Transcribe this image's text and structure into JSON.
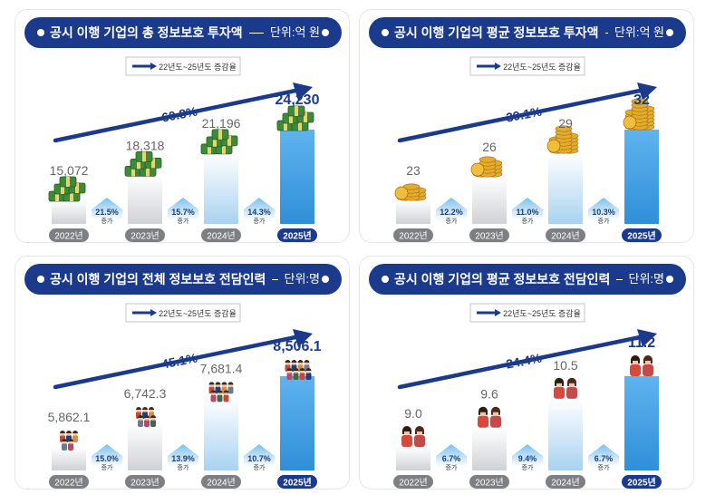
{
  "legend_label": "22년도~25년도 증감율",
  "chart_data": [
    {
      "type": "bar",
      "title": "공시 이행 기업의 총 정보보호 투자액",
      "unit": "단위:억 원",
      "categories": [
        "2022년",
        "2023년",
        "2024년",
        "2025년"
      ],
      "values": [
        15072,
        18318,
        21196,
        24230
      ],
      "value_labels": [
        "15,072",
        "18,318",
        "21,196",
        "24,230"
      ],
      "changes": [
        {
          "pct": "21.5%",
          "label": "증가"
        },
        {
          "pct": "15.7%",
          "label": "증가"
        },
        {
          "pct": "14.3%",
          "label": "증가"
        }
      ],
      "total_change": "60.8%",
      "icon": "money-stack-icon"
    },
    {
      "type": "bar",
      "title": "공시 이행 기업의 평균 정보보호 투자액",
      "unit": "단위:억 원",
      "categories": [
        "2022년",
        "2023년",
        "2024년",
        "2025년"
      ],
      "values": [
        23,
        26,
        29,
        32
      ],
      "value_labels": [
        "23",
        "26",
        "29",
        "32"
      ],
      "changes": [
        {
          "pct": "12.2%",
          "label": "증가"
        },
        {
          "pct": "11.0%",
          "label": "증가"
        },
        {
          "pct": "10.3%",
          "label": "증가"
        }
      ],
      "total_change": "39.1%",
      "icon": "coin-stack-icon"
    },
    {
      "type": "bar",
      "title": "공시 이행 기업의 전체 정보보호 전담인력",
      "unit": "단위:명",
      "categories": [
        "2022년",
        "2023년",
        "2024년",
        "2025년"
      ],
      "values": [
        5862.1,
        6742.3,
        7681.4,
        8506.1
      ],
      "value_labels": [
        "5,862.1",
        "6,742.3",
        "7,681.4",
        "8,506.1"
      ],
      "changes": [
        {
          "pct": "15.0%",
          "label": "증가"
        },
        {
          "pct": "13.9%",
          "label": "증가"
        },
        {
          "pct": "10.7%",
          "label": "증가"
        }
      ],
      "total_change": "45.1%",
      "icon": "people-group-icon"
    },
    {
      "type": "bar",
      "title": "공시 이행 기업의 평균 정보보호 전담인력",
      "unit": "단위:명",
      "categories": [
        "2022년",
        "2023년",
        "2024년",
        "2025년"
      ],
      "values": [
        9.0,
        9.6,
        10.5,
        11.2
      ],
      "value_labels": [
        "9.0",
        "9.6",
        "10.5",
        "11.2"
      ],
      "changes": [
        {
          "pct": "6.7%",
          "label": "증가"
        },
        {
          "pct": "9.4%",
          "label": "증가"
        },
        {
          "pct": "6.7%",
          "label": "증가"
        }
      ],
      "total_change": "24.4%",
      "icon": "couple-icon"
    }
  ],
  "colors": {
    "header": "#1b3a8c",
    "arrow": "#1b3a8c",
    "bar_gray": "#cfd2d6",
    "bar_light_blue": "#a9d2f0",
    "bar_blue": "#2f8fd8",
    "pill_gray": "#7d7f82",
    "pill_navy": "#1b3a8c"
  }
}
